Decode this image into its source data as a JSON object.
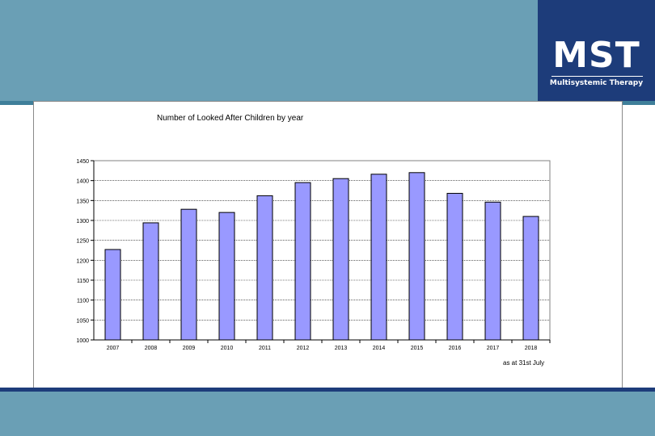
{
  "logo": {
    "main": "MST",
    "sub": "Multisystemic Therapy"
  },
  "colors": {
    "band": "#6a9fb5",
    "logo_bg": "#1d3c7a",
    "bar_fill": "#9999ff",
    "bar_stroke": "#000000"
  },
  "chart_data": {
    "type": "bar",
    "title": "Number of Looked After Children  by year",
    "xlabel": "",
    "ylabel": "",
    "categories": [
      "2007",
      "2008",
      "2009",
      "2010",
      "2011",
      "2012",
      "2013",
      "2014",
      "2015",
      "2016",
      "2017",
      "2018"
    ],
    "values": [
      1227,
      1294,
      1328,
      1320,
      1362,
      1395,
      1405,
      1416,
      1420,
      1368,
      1346,
      1310
    ],
    "ylim": [
      1000,
      1450
    ],
    "yticks": [
      1000,
      1050,
      1100,
      1150,
      1200,
      1250,
      1300,
      1350,
      1400,
      1450
    ],
    "grid": true,
    "legend": "none",
    "note": "as at 31st July"
  }
}
